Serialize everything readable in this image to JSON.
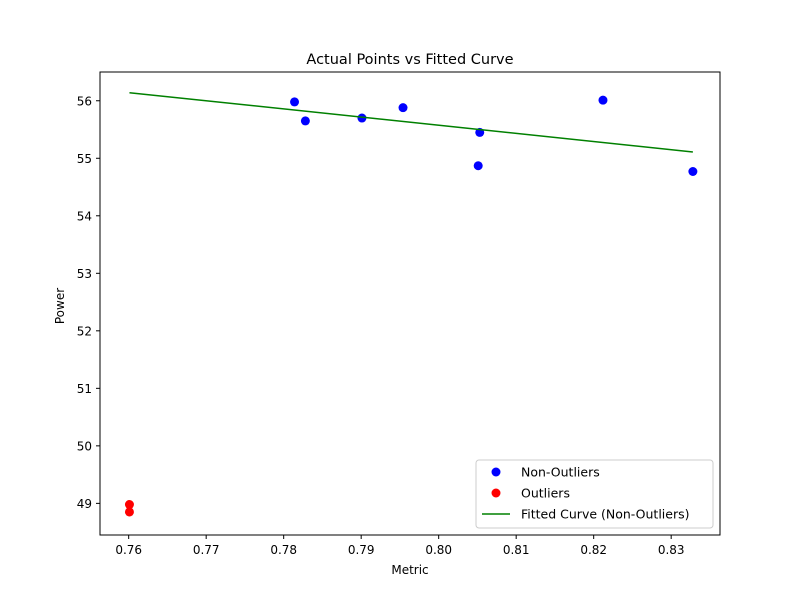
{
  "chart_data": {
    "type": "scatter",
    "title": "Actual Points vs Fitted Curve",
    "xlabel": "Metric",
    "ylabel": "Power",
    "xlim": [
      0.7563,
      0.8363
    ],
    "ylim": [
      48.45,
      56.5
    ],
    "xticks": [
      0.76,
      0.77,
      0.78,
      0.79,
      0.8,
      0.81,
      0.82,
      0.83
    ],
    "xtick_labels": [
      "0.76",
      "0.77",
      "0.78",
      "0.79",
      "0.80",
      "0.81",
      "0.82",
      "0.83"
    ],
    "yticks": [
      49,
      50,
      51,
      52,
      53,
      54,
      55,
      56
    ],
    "ytick_labels": [
      "49",
      "50",
      "51",
      "52",
      "53",
      "54",
      "55",
      "56"
    ],
    "grid": false,
    "legend_position": "bottom-right",
    "series": [
      {
        "name": "Non-Outliers",
        "kind": "scatter",
        "color": "#0000ff",
        "points": [
          {
            "x": 0.7814,
            "y": 55.98
          },
          {
            "x": 0.7828,
            "y": 55.65
          },
          {
            "x": 0.7901,
            "y": 55.7
          },
          {
            "x": 0.7954,
            "y": 55.88
          },
          {
            "x": 0.8051,
            "y": 54.87
          },
          {
            "x": 0.8053,
            "y": 55.45
          },
          {
            "x": 0.8212,
            "y": 56.01
          },
          {
            "x": 0.8328,
            "y": 54.77
          }
        ]
      },
      {
        "name": "Outliers",
        "kind": "scatter",
        "color": "#ff0000",
        "points": [
          {
            "x": 0.7601,
            "y": 48.98
          },
          {
            "x": 0.7601,
            "y": 48.85
          }
        ]
      },
      {
        "name": "Fitted Curve (Non-Outliers)",
        "kind": "line",
        "color": "#008000",
        "points": [
          {
            "x": 0.7601,
            "y": 56.14
          },
          {
            "x": 0.8328,
            "y": 55.11
          }
        ]
      }
    ]
  }
}
